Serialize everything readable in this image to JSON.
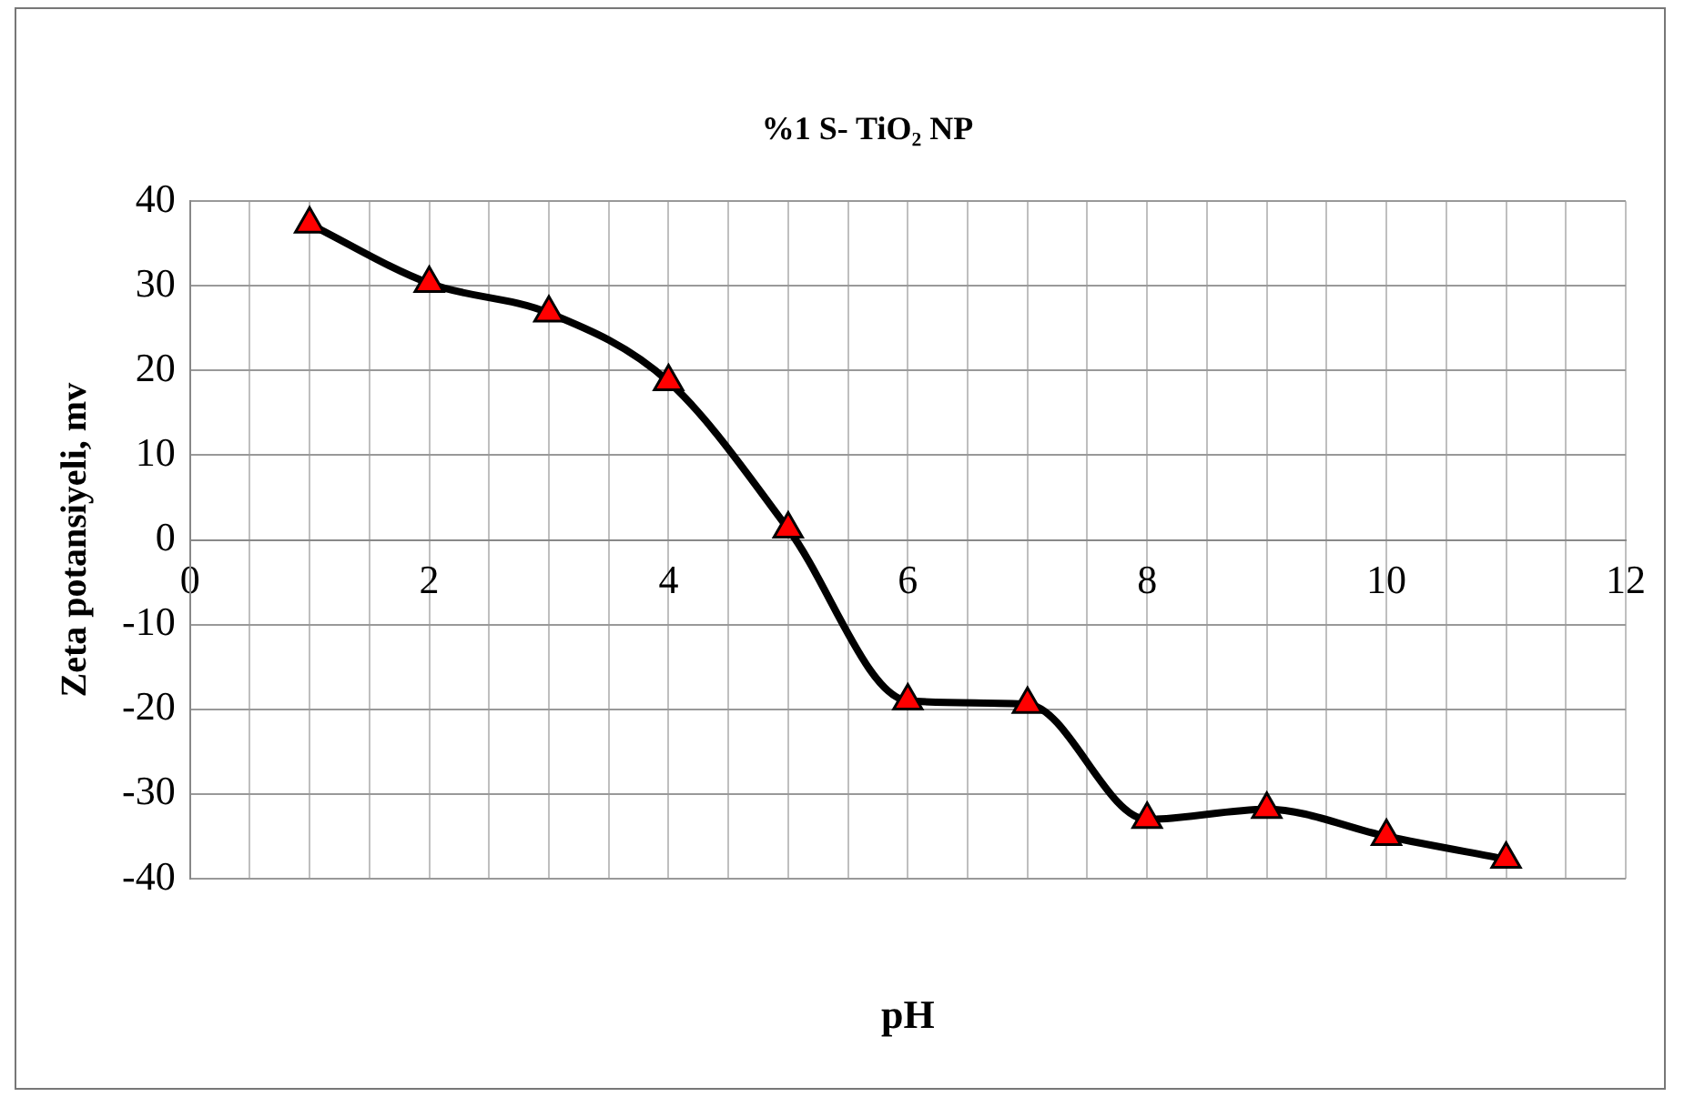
{
  "chart_data": {
    "type": "line",
    "title": "%1 S- TiO₂ NP",
    "xlabel": "pH",
    "ylabel": "Zeta potansiyeli, mv",
    "x": [
      1,
      2,
      3,
      4,
      5,
      6,
      7,
      8,
      9,
      10,
      11
    ],
    "series": [
      {
        "color": "#000000",
        "values": [
          37.3,
          30.3,
          26.8,
          18.7,
          1.3,
          -19,
          -19.4,
          -33,
          -31.8,
          -35,
          -37.7
        ]
      }
    ],
    "xlim": [
      0,
      12
    ],
    "xticks": [
      0,
      {
        "value": 0.5,
        "label": null
      },
      {
        "value": 1,
        "label": null
      },
      {
        "value": 1.5,
        "label": null
      },
      2,
      {
        "value": 2.5,
        "label": null
      },
      {
        "value": 3,
        "label": null
      },
      {
        "value": 3.5,
        "label": null
      },
      4,
      {
        "value": 4.5,
        "label": null
      },
      {
        "value": 5,
        "label": null
      },
      {
        "value": 5.5,
        "label": null
      },
      6,
      {
        "value": 6.5,
        "label": null
      },
      {
        "value": 7,
        "label": null
      },
      {
        "value": 7.5,
        "label": null
      },
      8,
      {
        "value": 8.5,
        "label": null
      },
      {
        "value": 9,
        "label": null
      },
      {
        "value": 9.5,
        "label": null
      },
      10,
      {
        "value": 10.5,
        "label": null
      },
      {
        "value": 11,
        "label": null
      },
      {
        "value": 11.5,
        "label": null
      },
      12
    ],
    "ylim": [
      -40,
      40
    ],
    "yticks": [
      -40,
      -30,
      -20,
      -10,
      0,
      10,
      20,
      30,
      40
    ],
    "grid": true,
    "legend": false,
    "marker": "triangle",
    "line_style": "solid"
  }
}
